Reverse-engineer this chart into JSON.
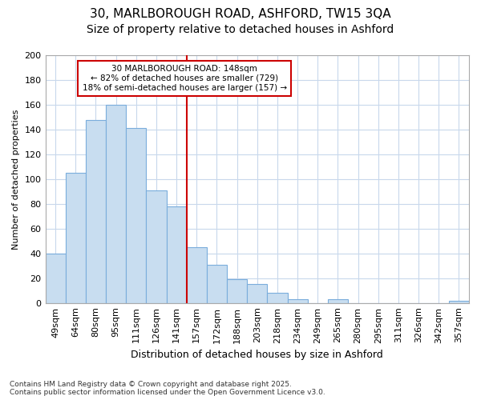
{
  "title1": "30, MARLBOROUGH ROAD, ASHFORD, TW15 3QA",
  "title2": "Size of property relative to detached houses in Ashford",
  "xlabel": "Distribution of detached houses by size in Ashford",
  "ylabel": "Number of detached properties",
  "categories": [
    "49sqm",
    "64sqm",
    "80sqm",
    "95sqm",
    "111sqm",
    "126sqm",
    "141sqm",
    "157sqm",
    "172sqm",
    "188sqm",
    "203sqm",
    "218sqm",
    "234sqm",
    "249sqm",
    "265sqm",
    "280sqm",
    "295sqm",
    "311sqm",
    "326sqm",
    "342sqm",
    "357sqm"
  ],
  "values": [
    40,
    105,
    148,
    160,
    141,
    91,
    78,
    45,
    31,
    19,
    15,
    8,
    3,
    0,
    3,
    0,
    0,
    0,
    0,
    0,
    2
  ],
  "bar_color": "#c8ddf0",
  "bar_edge_color": "#7aaddc",
  "red_line_color": "#cc0000",
  "grid_color": "#c8d8ec",
  "bg_color": "#ffffff",
  "annotation_box_color": "#cc0000",
  "marker_label": "30 MARLBOROUGH ROAD: 148sqm",
  "marker_line1": "← 82% of detached houses are smaller (729)",
  "marker_line2": "18% of semi-detached houses are larger (157) →",
  "footnote1": "Contains HM Land Registry data © Crown copyright and database right 2025.",
  "footnote2": "Contains public sector information licensed under the Open Government Licence v3.0.",
  "ylim": [
    0,
    200
  ],
  "yticks": [
    0,
    20,
    40,
    60,
    80,
    100,
    120,
    140,
    160,
    180,
    200
  ],
  "red_line_x": 6.5,
  "title1_fontsize": 11,
  "title2_fontsize": 10,
  "xlabel_fontsize": 9,
  "ylabel_fontsize": 8,
  "tick_fontsize": 8,
  "annot_fontsize": 7.5
}
